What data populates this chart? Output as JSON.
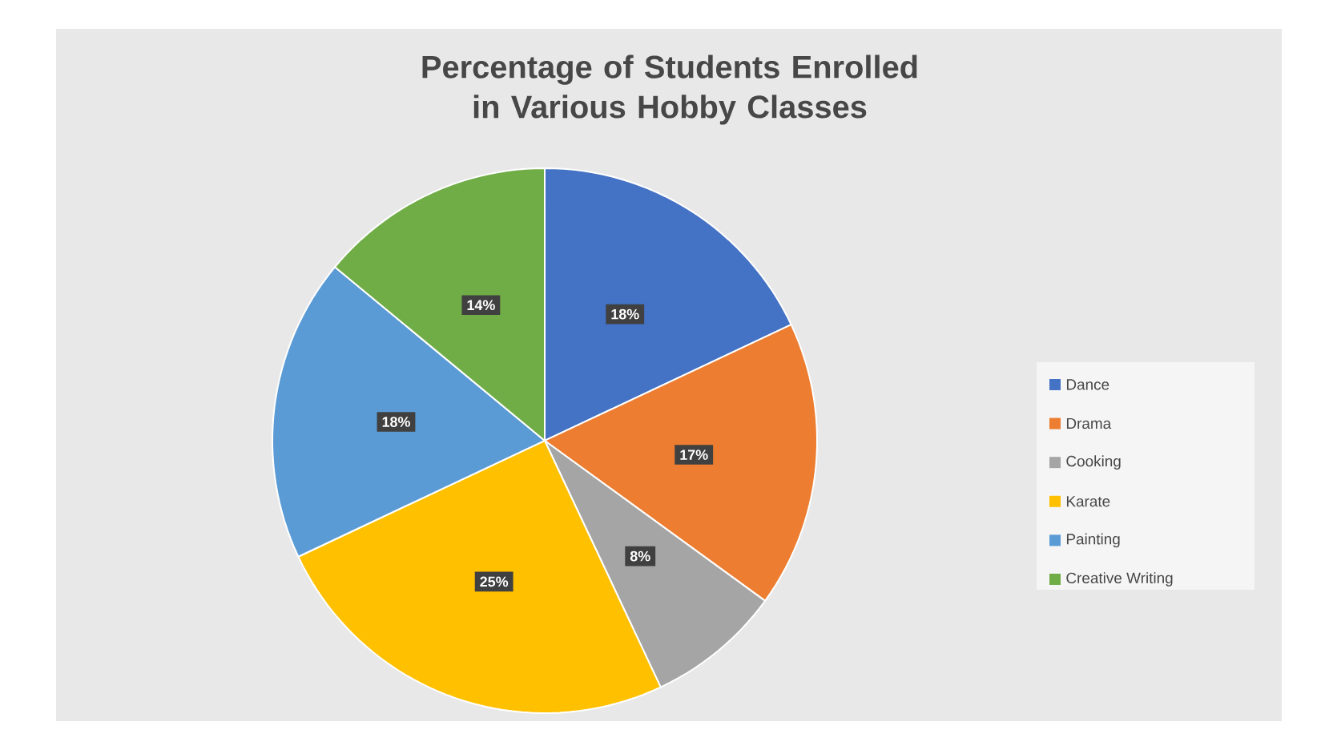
{
  "chart_data": {
    "type": "pie",
    "title": "Percentage of Students Enrolled in Various Hobby Classes",
    "categories": [
      "Dance",
      "Drama",
      "Cooking",
      "Karate",
      "Painting",
      "Creative Writing"
    ],
    "values": [
      18,
      17,
      8,
      25,
      18,
      14
    ],
    "colors": [
      "#4472c4",
      "#ed7d31",
      "#a5a5a5",
      "#ffc000",
      "#5b9bd5",
      "#70ad47"
    ],
    "value_labels": [
      "18%",
      "17%",
      "8%",
      "25%",
      "18%",
      "14%"
    ],
    "legend": "right"
  }
}
